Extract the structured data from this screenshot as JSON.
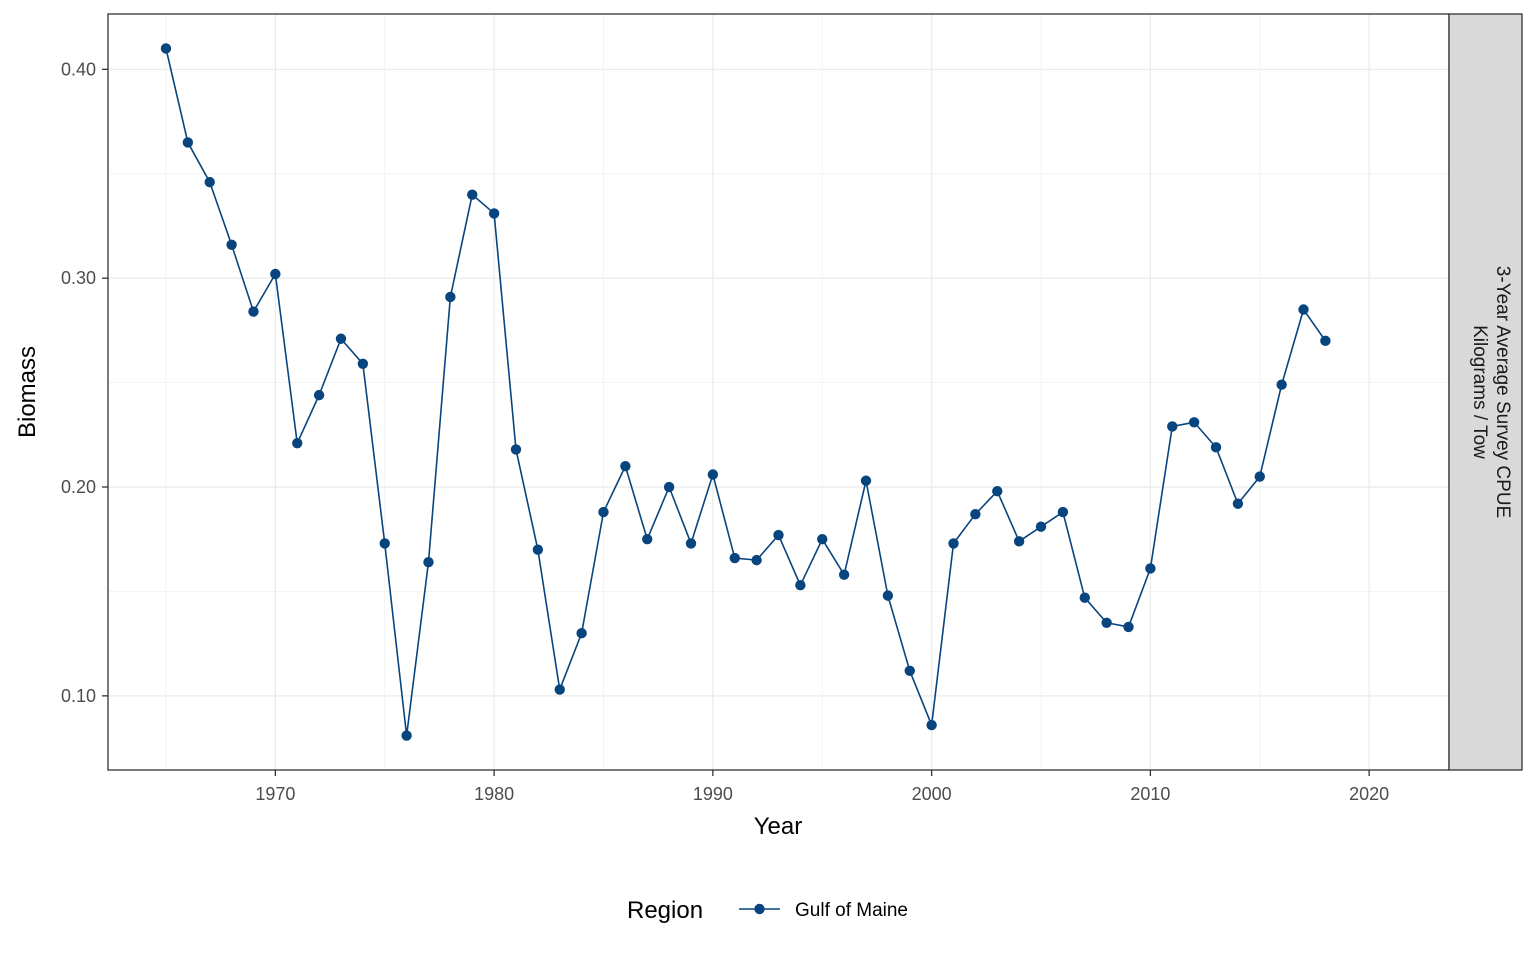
{
  "chart_data": {
    "type": "line",
    "xlabel": "Year",
    "ylabel": "Biomass",
    "xlim": [
      1962.35,
      2023.65
    ],
    "ylim": [
      0.0645,
      0.4265
    ],
    "x_ticks": [
      1970,
      1980,
      1990,
      2000,
      2010,
      2020
    ],
    "x_tick_labels": [
      "1970",
      "1980",
      "1990",
      "2000",
      "2010",
      "2020"
    ],
    "y_ticks": [
      0.1,
      0.2,
      0.3,
      0.4
    ],
    "y_tick_labels": [
      "0.10",
      "0.20",
      "0.30",
      "0.40"
    ],
    "strip_label": [
      "3-Year Average Survey CPUE",
      "Kilograms / Tow"
    ],
    "legend": {
      "title": "Region",
      "position": "bottom"
    },
    "grid": true,
    "series": [
      {
        "name": "Gulf of Maine",
        "color": "#08457e",
        "x": [
          1965,
          1966,
          1967,
          1968,
          1969,
          1970,
          1971,
          1972,
          1973,
          1974,
          1975,
          1976,
          1977,
          1978,
          1979,
          1980,
          1981,
          1982,
          1983,
          1984,
          1985,
          1986,
          1987,
          1988,
          1989,
          1990,
          1991,
          1992,
          1993,
          1994,
          1995,
          1996,
          1997,
          1998,
          1999,
          2000,
          2001,
          2002,
          2003,
          2004,
          2005,
          2006,
          2007,
          2008,
          2009,
          2010,
          2011,
          2012,
          2013,
          2014,
          2015,
          2016,
          2017,
          2018
        ],
        "y": [
          0.41,
          0.365,
          0.346,
          0.316,
          0.284,
          0.302,
          0.221,
          0.244,
          0.271,
          0.259,
          0.173,
          0.081,
          0.164,
          0.291,
          0.34,
          0.331,
          0.218,
          0.17,
          0.103,
          0.13,
          0.188,
          0.21,
          0.175,
          0.2,
          0.173,
          0.206,
          0.166,
          0.165,
          0.177,
          0.153,
          0.175,
          0.158,
          0.203,
          0.148,
          0.112,
          0.086,
          0.173,
          0.187,
          0.198,
          0.174,
          0.181,
          0.188,
          0.147,
          0.135,
          0.133,
          0.161,
          0.229,
          0.231,
          0.219,
          0.192,
          0.205,
          0.249,
          0.285,
          0.27
        ]
      }
    ]
  }
}
